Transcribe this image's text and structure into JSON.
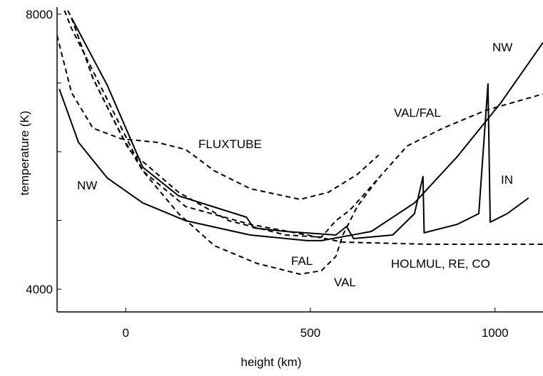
{
  "chart_data": {
    "type": "line",
    "xlabel": "height (km)",
    "ylabel": "temperature (K)",
    "xlim": [
      -186,
      1130
    ],
    "ylim": [
      3670,
      8050
    ],
    "xticks": [
      0,
      500,
      1000
    ],
    "yticks": [
      4000,
      8000
    ],
    "yticks_minor": [
      5000,
      6000,
      7000
    ],
    "series": [
      {
        "name": "NW",
        "color": "#000000",
        "dashed": false,
        "x": [
          -180,
          -128,
          -50,
          46,
          162,
          337,
          491,
          530,
          665,
          782,
          898,
          1015,
          1130
        ],
        "values": [
          6912,
          6135,
          5617,
          5255,
          4996,
          4788,
          4706,
          4706,
          4840,
          5255,
          5928,
          6705,
          7586
        ]
      },
      {
        "name": "FLUXTUBE",
        "color": "#000000",
        "dashed": true,
        "x": [
          -186,
          -147,
          -89,
          -12,
          85,
          162,
          240,
          337,
          472,
          549,
          627,
          685
        ],
        "values": [
          7689,
          6860,
          6342,
          6187,
          6135,
          6032,
          5721,
          5462,
          5306,
          5410,
          5669,
          5950
        ]
      },
      {
        "name": "VAL/FAL",
        "color": "#000000",
        "dashed": true,
        "x": [
          685,
          762,
          859,
          975,
          1130
        ],
        "values": [
          5617,
          6083,
          6342,
          6601,
          6840
        ]
      },
      {
        "name": "VAL",
        "color": "#000000",
        "dashed": true,
        "x": [
          -157,
          -147,
          -89,
          -12,
          46,
          143,
          240,
          356,
          472,
          530,
          569,
          588,
          627,
          685
        ],
        "values": [
          8052,
          7948,
          7068,
          6239,
          5721,
          5099,
          4633,
          4374,
          4219,
          4270,
          4478,
          4788,
          5203,
          5617
        ]
      },
      {
        "name": "FAL",
        "color": "#000000",
        "dashed": true,
        "x": [
          -147,
          -89,
          8,
          143,
          279,
          433,
          530,
          569,
          607,
          685
        ],
        "values": [
          7948,
          7068,
          6032,
          5410,
          4996,
          4788,
          4757,
          4996,
          5151,
          5617
        ]
      },
      {
        "name": "HOLMUL, RE, CO",
        "color": "#000000",
        "dashed": true,
        "x": [
          -166,
          -147,
          -50,
          46,
          162,
          337,
          491,
          588,
          820,
          1130
        ],
        "values": [
          8052,
          7793,
          6757,
          5721,
          5203,
          4944,
          4788,
          4685,
          4654,
          4654
        ]
      },
      {
        "name": "IN",
        "color": "#000000",
        "dashed": false,
        "x": [
          -147,
          -50,
          46,
          143,
          327,
          346,
          433,
          569,
          598,
          617,
          723,
          782,
          805,
          808,
          898,
          956,
          981,
          987,
          1033,
          1091
        ],
        "values": [
          7948,
          6964,
          5773,
          5358,
          5047,
          4892,
          4840,
          4788,
          4913,
          4737,
          4788,
          5099,
          5638,
          4820,
          4944,
          5099,
          6985,
          4975,
          5099,
          5327
        ]
      }
    ]
  }
}
